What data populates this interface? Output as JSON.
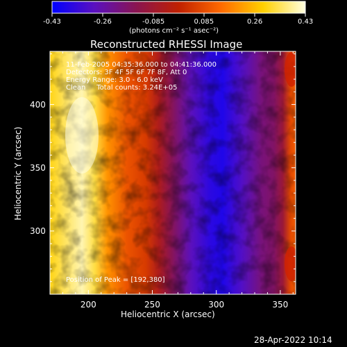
{
  "chart_data": {
    "type": "heatmap",
    "title": "Reconstructed RHESSI Image",
    "xlabel": "Heliocentric X (arcsec)",
    "ylabel": "Heliocentric Y (arcsec)",
    "xlim": [
      170,
      362
    ],
    "ylim": [
      250,
      442
    ],
    "x_ticks": [
      200,
      250,
      300,
      350
    ],
    "y_ticks": [
      300,
      350,
      400
    ],
    "colorbar": {
      "min": -0.43,
      "max": 0.43,
      "ticks": [
        "-0.43",
        "-0.26",
        "-0.085",
        "0.085",
        "0.26",
        "0.43"
      ],
      "unit_label": "(photons cm⁻² s⁻¹ asec⁻²)",
      "colors": [
        "#0000ff",
        "#5a10c0",
        "#8a1450",
        "#c02000",
        "#ff6a00",
        "#ffd000",
        "#ffffe0"
      ]
    },
    "annotations": [
      "11-Feb-2005 04:35:36.000 to 04:41:36.000",
      "Detectors: 3F 4F 5F 6F 7F 8F, Att 0",
      "Energy Range: 3.0 - 6.0 keV",
      "Clean     Total counts: 3.24E+05"
    ],
    "peak_label": "Position of Peak = [192,380]",
    "peak": [
      192,
      380
    ],
    "column_profile": [
      {
        "x": 170,
        "v": 0.3
      },
      {
        "x": 185,
        "v": 0.36
      },
      {
        "x": 195,
        "v": 0.4
      },
      {
        "x": 205,
        "v": 0.33
      },
      {
        "x": 215,
        "v": 0.2
      },
      {
        "x": 230,
        "v": 0.1
      },
      {
        "x": 245,
        "v": 0.05
      },
      {
        "x": 255,
        "v": -0.05
      },
      {
        "x": 265,
        "v": -0.15
      },
      {
        "x": 280,
        "v": -0.28
      },
      {
        "x": 295,
        "v": -0.36
      },
      {
        "x": 305,
        "v": -0.38
      },
      {
        "x": 320,
        "v": -0.3
      },
      {
        "x": 335,
        "v": -0.2
      },
      {
        "x": 345,
        "v": -0.17
      },
      {
        "x": 352,
        "v": -0.1
      },
      {
        "x": 358,
        "v": 0.08
      },
      {
        "x": 362,
        "v": 0.12
      }
    ]
  },
  "footer": {
    "timestamp": "28-Apr-2022 10:14"
  }
}
